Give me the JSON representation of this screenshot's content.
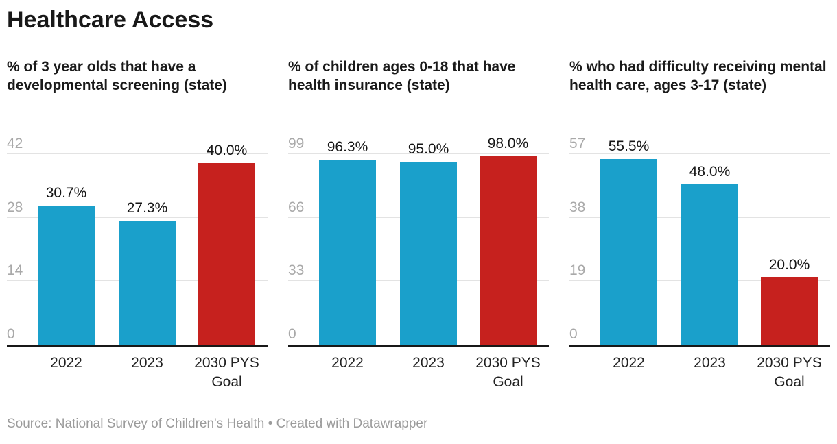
{
  "page": {
    "title": "Healthcare Access",
    "footer": "Source: National Survey of Children's Health • Created with Datawrapper"
  },
  "colors": {
    "bar_blue": "#1aa0cb",
    "bar_red": "#c6211e",
    "gridline": "#e3e3e3",
    "axis_line": "#181818",
    "tick_text": "#a9a9a9",
    "value_text": "#161616",
    "footer_text": "#9b9b9b"
  },
  "chart_data": [
    {
      "type": "bar",
      "title": "% of 3 year olds that have a developmental screening (state)",
      "categories": [
        "2022",
        "2023",
        "2030 PYS Goal"
      ],
      "values": [
        30.7,
        27.3,
        40.0
      ],
      "value_labels": [
        "30.7%",
        "27.3%",
        "40.0%"
      ],
      "bar_colors": [
        "blue",
        "blue",
        "red"
      ],
      "yticks": [
        0,
        14,
        28,
        42
      ],
      "ylim": [
        0,
        42
      ],
      "grid": true,
      "legend": "none"
    },
    {
      "type": "bar",
      "title": "% of children ages 0-18 that have health insurance (state)",
      "categories": [
        "2022",
        "2023",
        "2030 PYS Goal"
      ],
      "values": [
        96.3,
        95.0,
        98.0
      ],
      "value_labels": [
        "96.3%",
        "95.0%",
        "98.0%"
      ],
      "bar_colors": [
        "blue",
        "blue",
        "red"
      ],
      "yticks": [
        0,
        33,
        66,
        99
      ],
      "ylim": [
        0,
        99
      ],
      "grid": true,
      "legend": "none"
    },
    {
      "type": "bar",
      "title": "% who had difficulty receiving mental health care, ages 3-17 (state)",
      "categories": [
        "2022",
        "2023",
        "2030 PYS Goal"
      ],
      "values": [
        55.5,
        48.0,
        20.0
      ],
      "value_labels": [
        "55.5%",
        "48.0%",
        "20.0%"
      ],
      "bar_colors": [
        "blue",
        "blue",
        "red"
      ],
      "yticks": [
        0,
        19,
        38,
        57
      ],
      "ylim": [
        0,
        57
      ],
      "grid": true,
      "legend": "none"
    }
  ]
}
